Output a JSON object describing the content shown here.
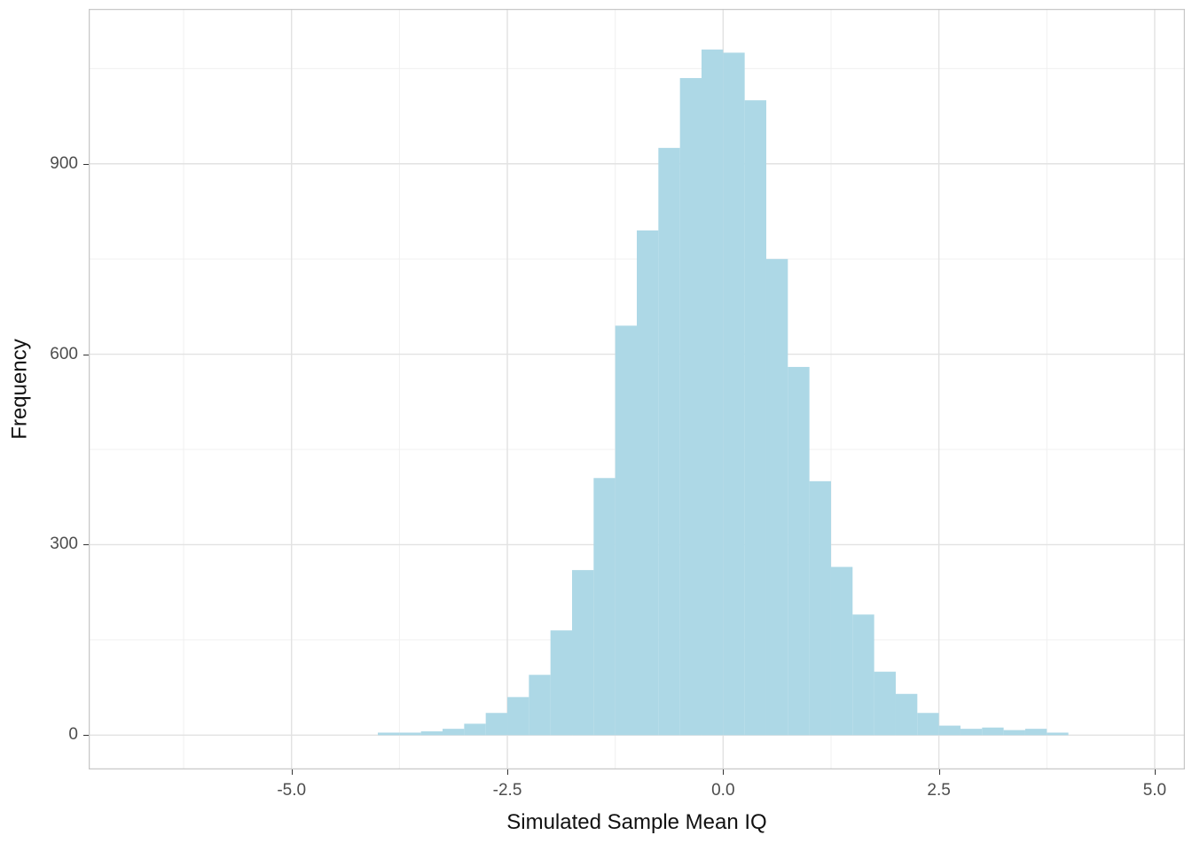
{
  "chart_data": {
    "type": "bar",
    "subtype": "histogram",
    "title": "",
    "xlabel": "Simulated Sample Mean IQ",
    "ylabel": "Frequency",
    "bar_color": "#ADD8E6",
    "bin_start": -4.0,
    "bin_width": 0.25,
    "counts": [
      4,
      4,
      6,
      10,
      18,
      35,
      60,
      95,
      165,
      260,
      405,
      645,
      795,
      925,
      1035,
      1080,
      1075,
      1000,
      750,
      580,
      400,
      265,
      190,
      100,
      65,
      35,
      15,
      10,
      12,
      8,
      10,
      4
    ],
    "x_ticks": {
      "values": [
        -5.0,
        -2.5,
        0.0,
        2.5,
        5.0
      ],
      "labels": [
        "-5.0",
        "-2.5",
        "0.0",
        "2.5",
        "5.0"
      ]
    },
    "y_ticks": {
      "values": [
        0,
        300,
        600,
        900
      ],
      "labels": [
        "0",
        "300",
        "600",
        "900"
      ]
    },
    "x_minor": [
      -6.25,
      -3.75,
      -1.25,
      1.25,
      3.75
    ],
    "y_minor": [
      150,
      450,
      750,
      1050
    ],
    "xlim": [
      -7.35,
      5.35
    ],
    "ylim": [
      -54,
      1144
    ],
    "grid": true,
    "legend": "none",
    "major_grid_color": "#e2e2e2",
    "minor_grid_color": "#f0f0f0",
    "panel_border_color": "#c8c8c8",
    "panel_background": "#ffffff",
    "tick_mark_color": "#333333",
    "tick_label_color": "#4d4d4d"
  }
}
